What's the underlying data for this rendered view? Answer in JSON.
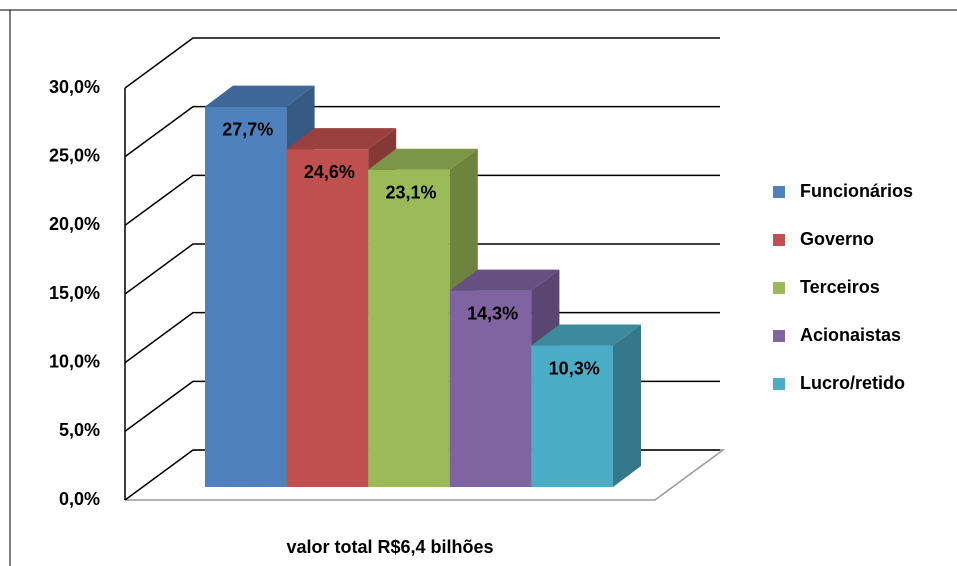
{
  "chart_data": {
    "type": "bar3d",
    "categories": [
      "valor total R$6,4 bilhões"
    ],
    "series": [
      {
        "name": "Funcionários",
        "color": "#4f81bd",
        "values": [
          27.7
        ],
        "value_labels": [
          "27,7%"
        ]
      },
      {
        "name": "Governo",
        "color": "#c0504d",
        "values": [
          24.6
        ],
        "value_labels": [
          "24,6%"
        ]
      },
      {
        "name": "Terceiros",
        "color": "#9bbb59",
        "values": [
          23.1
        ],
        "value_labels": [
          "23,1%"
        ]
      },
      {
        "name": "Acionaistas",
        "color": "#8064a2",
        "values": [
          14.3
        ],
        "value_labels": [
          "14,3%"
        ]
      },
      {
        "name": "Lucro/retido",
        "color": "#4bacc6",
        "values": [
          10.3
        ],
        "value_labels": [
          "10,3%"
        ]
      }
    ],
    "ylim": [
      0,
      30
    ],
    "yticks": [
      {
        "value": 0,
        "label": "0,0%"
      },
      {
        "value": 5,
        "label": "5,0%"
      },
      {
        "value": 10,
        "label": "10,0%"
      },
      {
        "value": 15,
        "label": "15,0%"
      },
      {
        "value": 20,
        "label": "20,0%"
      },
      {
        "value": 25,
        "label": "25,0%"
      },
      {
        "value": 30,
        "label": "30,0%"
      }
    ],
    "grid": true,
    "legend": "right"
  }
}
